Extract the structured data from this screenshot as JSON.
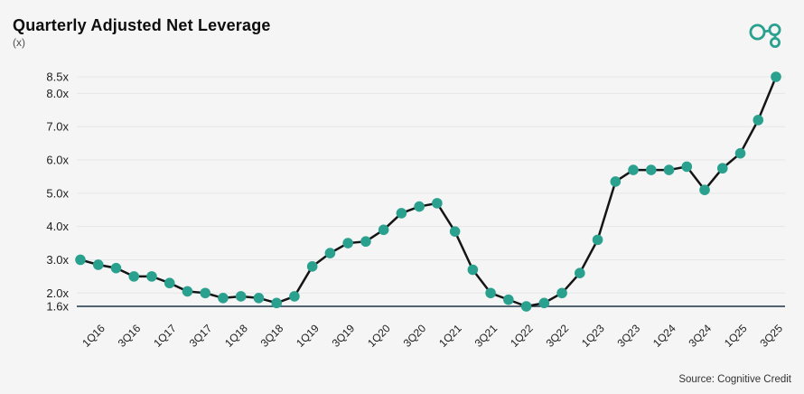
{
  "header": {
    "title": "Quarterly Adjusted Net Leverage",
    "subtitle": "(x)"
  },
  "logo": "cognitive-credit-logo",
  "source": "Source: Cognitive Credit",
  "colors": {
    "accent": "#2aa18f",
    "line": "#151515",
    "axis": "#1c3347",
    "grid": "#e6e6e6",
    "background": "#f5f5f5"
  },
  "chart_data": {
    "type": "line",
    "title": "Quarterly Adjusted Net Leverage",
    "unit": "x",
    "grid": true,
    "legend": false,
    "marker": "circle",
    "ylim": [
      1.6,
      8.5
    ],
    "x": [
      "4Q15",
      "1Q16",
      "2Q16",
      "3Q16",
      "4Q16",
      "1Q17",
      "2Q17",
      "3Q17",
      "4Q17",
      "1Q18",
      "2Q18",
      "3Q18",
      "4Q18",
      "1Q19",
      "2Q19",
      "3Q19",
      "4Q19",
      "1Q20",
      "2Q20",
      "3Q20",
      "4Q20",
      "1Q21",
      "2Q21",
      "3Q21",
      "4Q21",
      "1Q22",
      "2Q22",
      "3Q22",
      "4Q22",
      "1Q23",
      "2Q23",
      "3Q23",
      "4Q23",
      "1Q24",
      "2Q24",
      "3Q24",
      "4Q24",
      "1Q25",
      "2Q25",
      "3Q25"
    ],
    "values": [
      3.0,
      2.85,
      2.75,
      2.5,
      2.5,
      2.3,
      2.05,
      2.0,
      1.85,
      1.9,
      1.85,
      1.7,
      1.9,
      2.8,
      3.2,
      3.5,
      3.55,
      3.9,
      4.4,
      4.6,
      4.7,
      3.85,
      2.7,
      2.0,
      1.8,
      1.6,
      1.7,
      2.0,
      2.6,
      3.6,
      5.35,
      5.7,
      5.7,
      5.7,
      5.8,
      5.1,
      5.75,
      6.2,
      7.2,
      8.5
    ],
    "x_tick_labels": [
      "1Q16",
      "3Q16",
      "1Q17",
      "3Q17",
      "1Q18",
      "3Q18",
      "1Q19",
      "3Q19",
      "1Q20",
      "3Q20",
      "1Q21",
      "3Q21",
      "1Q22",
      "3Q22",
      "1Q23",
      "3Q23",
      "1Q24",
      "3Q24",
      "1Q25",
      "3Q25"
    ],
    "y_ticks": [
      1.6,
      2.0,
      3.0,
      4.0,
      5.0,
      6.0,
      7.0,
      8.0,
      8.5
    ],
    "y_tick_labels": [
      "1.6x",
      "2.0x",
      "3.0x",
      "4.0x",
      "5.0x",
      "6.0x",
      "7.0x",
      "8.0x",
      "8.5x"
    ]
  }
}
